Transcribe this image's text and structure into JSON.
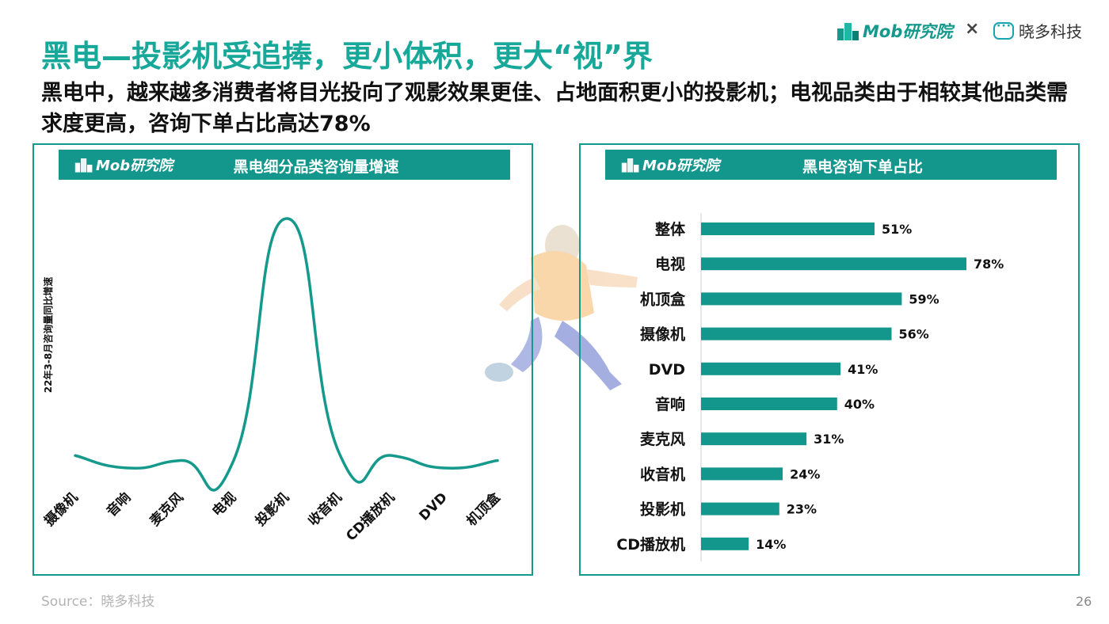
{
  "header": {
    "title": "黑电—投影机受追捧，更小体积，更大“视”界",
    "subtitle": "黑电中，越来越多消费者将目光投向了观影效果更佳、占地面积更小的投影机；电视品类由于相较其他品类需求度更高，咨询下单占比高达78%"
  },
  "brand": {
    "mob": "Mob研究院",
    "separator": "×",
    "partner": "晓多科技"
  },
  "colors": {
    "accent": "#14998c",
    "bar": "#13978c",
    "title": "#18a89a"
  },
  "panels": {
    "left": {
      "title": "黑电细分品类咨询量增速",
      "logo": "Mob研究院"
    },
    "right": {
      "title": "黑电咨询下单占比",
      "logo": "Mob研究院"
    }
  },
  "chart_data": [
    {
      "type": "line",
      "title": "黑电细分品类咨询量增速",
      "ylabel": "22年3-8月咨询量同比增速",
      "categories": [
        "摄像机",
        "音响",
        "麦克风",
        "电视",
        "投影机",
        "收音机",
        "CD播放机",
        "DVD",
        "机顶盒"
      ],
      "values": [
        0.05,
        0.0,
        0.03,
        0.03,
        1.0,
        0.06,
        0.05,
        0.0,
        0.03
      ],
      "smooth": true,
      "yaxis_visible": false,
      "grid": false
    },
    {
      "type": "bar",
      "orientation": "horizontal",
      "title": "黑电咨询下单占比",
      "categories": [
        "整体",
        "电视",
        "机顶盒",
        "摄像机",
        "DVD",
        "音响",
        "麦克风",
        "收音机",
        "投影机",
        "CD播放机"
      ],
      "values": [
        51,
        78,
        59,
        56,
        41,
        40,
        31,
        24,
        23,
        14
      ],
      "labels": [
        "51%",
        "78%",
        "59%",
        "56%",
        "41%",
        "40%",
        "31%",
        "24%",
        "23%",
        "14%"
      ],
      "unit": "%",
      "grid": false
    }
  ],
  "footer": {
    "source": "Source：晓多科技",
    "page": "26"
  }
}
